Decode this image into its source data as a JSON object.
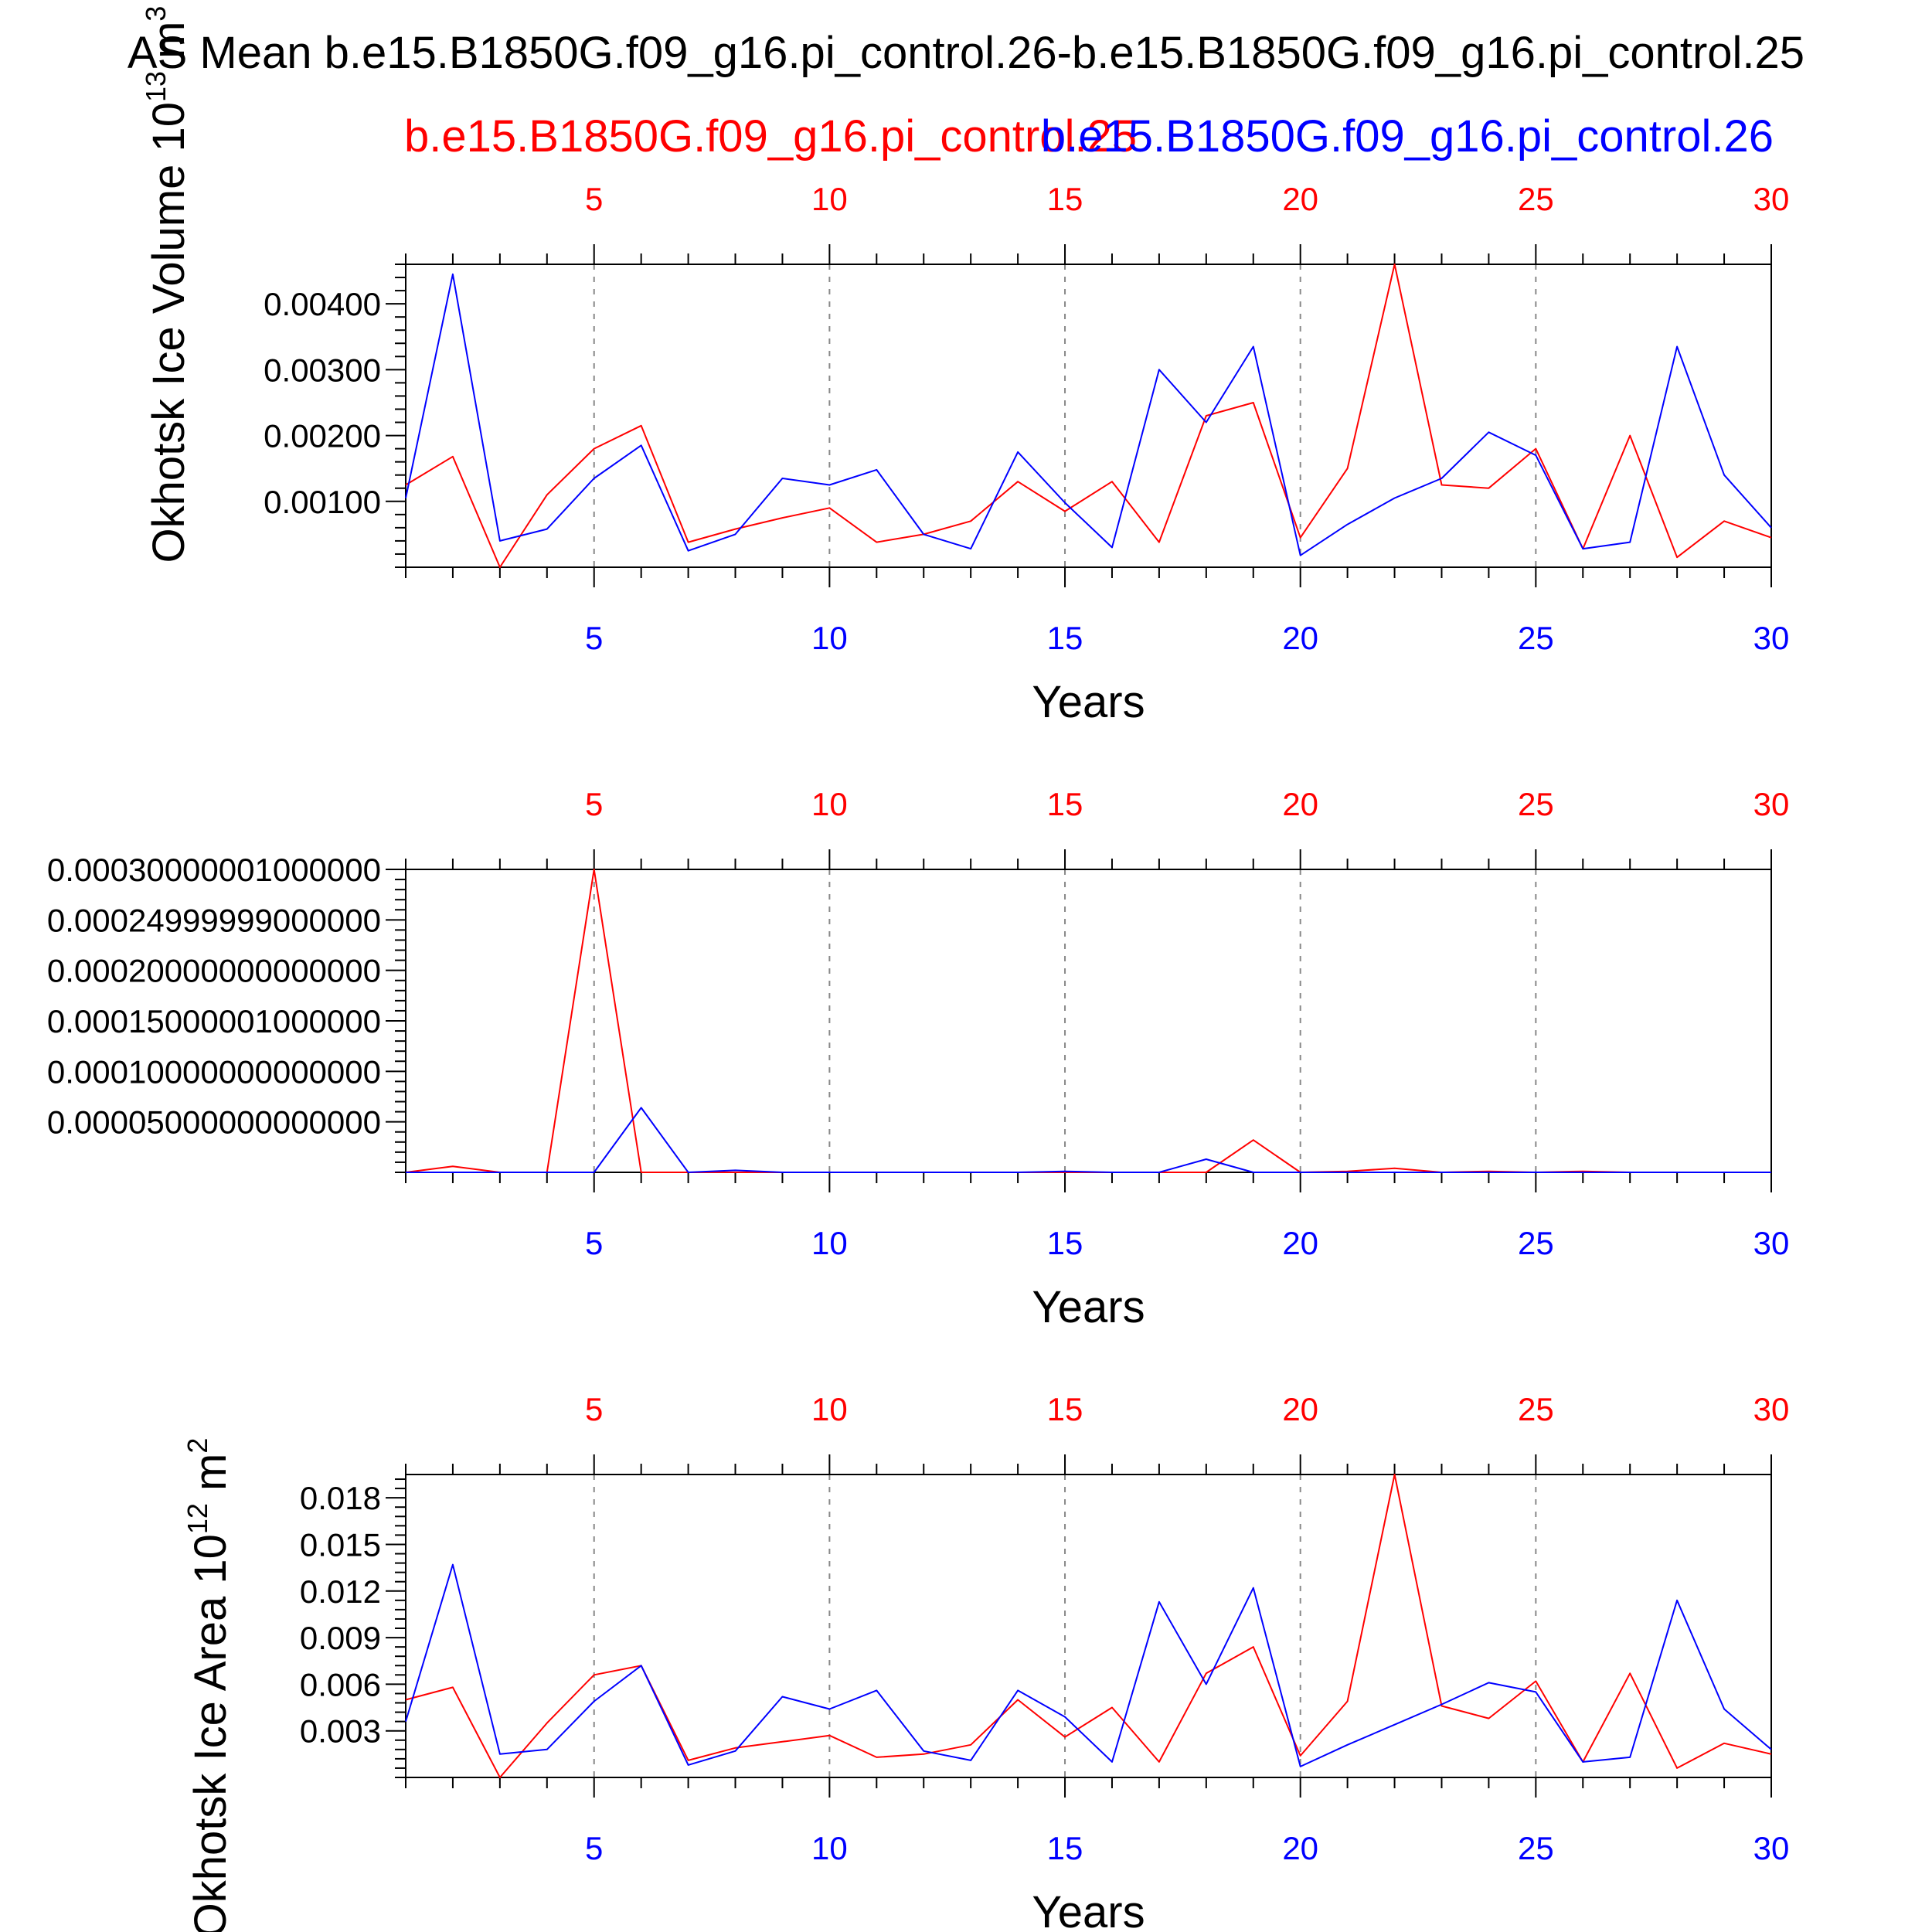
{
  "figure": {
    "title": "AS Mean b.e15.B1850G.f09_g16.pi_control.26-b.e15.B1850G.f09_g16.pi_control.25",
    "legend_red": "b.e15.B1850G.f09_g16.pi_control.25",
    "legend_blue": "b.e15.B1850G.f09_g16.pi_control.26",
    "red_color": "#ff0000",
    "blue_color": "#0000ff",
    "grid_color": "#888888",
    "x_ticks": [
      "5",
      "10",
      "15",
      "20",
      "25",
      "30"
    ]
  },
  "chart_data": [
    {
      "type": "line",
      "title": "",
      "xlabel": "Years",
      "ylabel": "Okhotsk Ice Volume 10",
      "ylabel_sup": "13",
      "ylabel_unit": " m",
      "ylabel_unit_sup": "3",
      "xlim": [
        1,
        30
      ],
      "ylim": [
        0,
        0.0046
      ],
      "yticks": [
        0.001,
        0.002,
        0.003,
        0.004
      ],
      "ytick_labels": [
        "0.00100",
        "0.00200",
        "0.00300",
        "0.00400"
      ],
      "x": [
        1,
        2,
        3,
        4,
        5,
        6,
        7,
        8,
        9,
        10,
        11,
        12,
        13,
        14,
        15,
        16,
        17,
        18,
        19,
        20,
        21,
        22,
        23,
        24,
        25,
        26,
        27,
        28,
        29,
        30
      ],
      "series": [
        {
          "name": "b.e15.B1850G.f09_g16.pi_control.25",
          "color": "#ff0000",
          "values": [
            0.00125,
            0.00168,
            0.0,
            0.0011,
            0.0018,
            0.00215,
            0.00038,
            0.00058,
            0.00075,
            0.0009,
            0.00038,
            0.0005,
            0.0007,
            0.0013,
            0.00085,
            0.0013,
            0.00038,
            0.0023,
            0.0025,
            0.00045,
            0.0015,
            0.0046,
            0.00125,
            0.0012,
            0.0018,
            0.00028,
            0.002,
            0.00015,
            0.0007,
            0.00045
          ]
        },
        {
          "name": "b.e15.B1850G.f09_g16.pi_control.26",
          "color": "#0000ff",
          "values": [
            0.00105,
            0.00445,
            0.0004,
            0.00058,
            0.00135,
            0.00185,
            0.00025,
            0.0005,
            0.00135,
            0.00125,
            0.00148,
            0.0005,
            0.00028,
            0.00175,
            0.00098,
            0.0003,
            0.003,
            0.0022,
            0.00335,
            0.00018,
            0.00065,
            0.00105,
            0.00135,
            0.00205,
            0.0017,
            0.00028,
            0.00038,
            0.00335,
            0.0014,
            0.0006
          ]
        }
      ]
    },
    {
      "type": "line",
      "title": "",
      "xlabel": "Years",
      "ylabel": "",
      "xlim": [
        1,
        30
      ],
      "ylim": [
        0,
        0.0003
      ],
      "yticks": [
        5e-05,
        0.0001,
        0.00015,
        0.0002,
        0.00025,
        0.0003
      ],
      "ytick_labels": [
        "0.00005000000000000",
        "0.00010000000000000",
        "0.00015000001000000",
        "0.00020000000000000",
        "0.00024999999000000",
        "0.00030000001000000"
      ],
      "x": [
        1,
        2,
        3,
        4,
        5,
        6,
        7,
        8,
        9,
        10,
        11,
        12,
        13,
        14,
        15,
        16,
        17,
        18,
        19,
        20,
        21,
        22,
        23,
        24,
        25,
        26,
        27,
        28,
        29,
        30
      ],
      "series": [
        {
          "name": "b.e15.B1850G.f09_g16.pi_control.25",
          "color": "#ff0000",
          "values": [
            0,
            6e-06,
            0,
            0,
            0.0003,
            0,
            0,
            0,
            0,
            0,
            0,
            0,
            0,
            0,
            0,
            0,
            0,
            0,
            3.2e-05,
            0,
            1e-06,
            4e-06,
            0,
            1e-06,
            0,
            1e-06,
            0,
            0,
            0,
            0
          ]
        },
        {
          "name": "b.e15.B1850G.f09_g16.pi_control.26",
          "color": "#0000ff",
          "values": [
            0,
            0,
            0,
            0,
            0,
            6.4e-05,
            0,
            2e-06,
            0,
            0,
            0,
            0,
            0,
            0,
            1e-06,
            0,
            0,
            1.3e-05,
            0,
            0,
            0,
            0,
            0,
            0,
            0,
            0,
            0,
            0,
            0,
            0
          ]
        }
      ]
    },
    {
      "type": "line",
      "title": "",
      "xlabel": "Years",
      "ylabel": "Okhotsk Ice Area 10",
      "ylabel_sup": "12",
      "ylabel_unit": " m",
      "ylabel_unit_sup": "2",
      "xlim": [
        1,
        30
      ],
      "ylim": [
        0,
        0.0195
      ],
      "yticks": [
        0.003,
        0.006,
        0.009,
        0.012,
        0.015,
        0.018
      ],
      "ytick_labels": [
        "0.003",
        "0.006",
        "0.009",
        "0.012",
        "0.015",
        "0.018"
      ],
      "x": [
        1,
        2,
        3,
        4,
        5,
        6,
        7,
        8,
        9,
        10,
        11,
        12,
        13,
        14,
        15,
        16,
        17,
        18,
        19,
        20,
        21,
        22,
        23,
        24,
        25,
        26,
        27,
        28,
        29,
        30
      ],
      "series": [
        {
          "name": "b.e15.B1850G.f09_g16.pi_control.25",
          "color": "#ff0000",
          "values": [
            0.005,
            0.0058,
            0.0,
            0.0035,
            0.0066,
            0.0072,
            0.0011,
            0.0019,
            0.0023,
            0.0027,
            0.0013,
            0.0015,
            0.0021,
            0.005,
            0.0026,
            0.0045,
            0.001,
            0.0067,
            0.0084,
            0.0014,
            0.0049,
            0.0195,
            0.0046,
            0.0038,
            0.0062,
            0.001,
            0.0067,
            0.0006,
            0.0022,
            0.0015
          ]
        },
        {
          "name": "b.e15.B1850G.f09_g16.pi_control.26",
          "color": "#0000ff",
          "values": [
            0.0036,
            0.0137,
            0.0015,
            0.0018,
            0.0049,
            0.0072,
            0.0008,
            0.0017,
            0.0052,
            0.0044,
            0.0056,
            0.0017,
            0.0011,
            0.0056,
            0.0039,
            0.001,
            0.0113,
            0.006,
            0.0122,
            0.0007,
            0.0021,
            0.0034,
            0.0047,
            0.0061,
            0.0055,
            0.001,
            0.0013,
            0.0114,
            0.0044,
            0.0018
          ]
        }
      ]
    }
  ]
}
